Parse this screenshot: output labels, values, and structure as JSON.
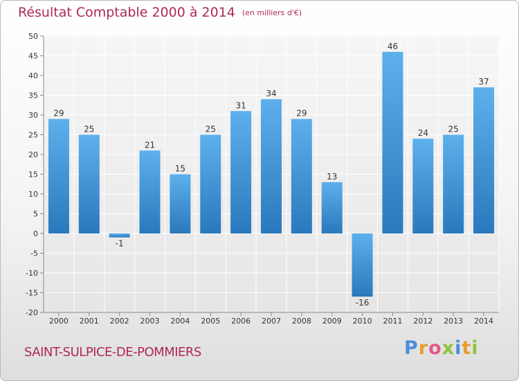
{
  "chart_data": {
    "type": "bar",
    "title": "Résultat Comptable 2000 à 2014",
    "subtitle": "(en milliers d'€)",
    "categories": [
      "2000",
      "2001",
      "2002",
      "2003",
      "2004",
      "2005",
      "2006",
      "2007",
      "2008",
      "2009",
      "2010",
      "2011",
      "2012",
      "2013",
      "2014"
    ],
    "values": [
      29,
      25,
      -1,
      21,
      15,
      25,
      31,
      34,
      29,
      13,
      -16,
      46,
      24,
      25,
      37
    ],
    "value_labels": [
      "29",
      "25",
      "-1",
      "21",
      "15",
      "25",
      "31",
      "34",
      "29",
      "13",
      "-16",
      "46",
      "24",
      "25",
      "37"
    ],
    "ylim": [
      -20,
      50
    ],
    "yticks": [
      50,
      45,
      40,
      35,
      30,
      25,
      20,
      15,
      10,
      5,
      0,
      -5,
      -10,
      -15,
      -20
    ],
    "ytick_labels": [
      "50",
      "45",
      "40",
      "35",
      "30",
      "25",
      "20",
      "15",
      "10",
      "5",
      "0",
      "-5",
      "-10",
      "-15",
      "-20"
    ],
    "xlabel": "",
    "ylabel": "",
    "grid": true,
    "bar_color": "#3a8fd6"
  },
  "footer": {
    "commune": "SAINT-SULPICE-DE-POMMIERS",
    "brand_letters": [
      "P",
      "r",
      "o",
      "x",
      "i",
      "t",
      "i"
    ],
    "brand_colors": [
      "#4a8fd8",
      "#e89a2e",
      "#e05a8a",
      "#8cc43f",
      "#4a8fd8",
      "#e89a2e",
      "#8cc43f"
    ]
  }
}
